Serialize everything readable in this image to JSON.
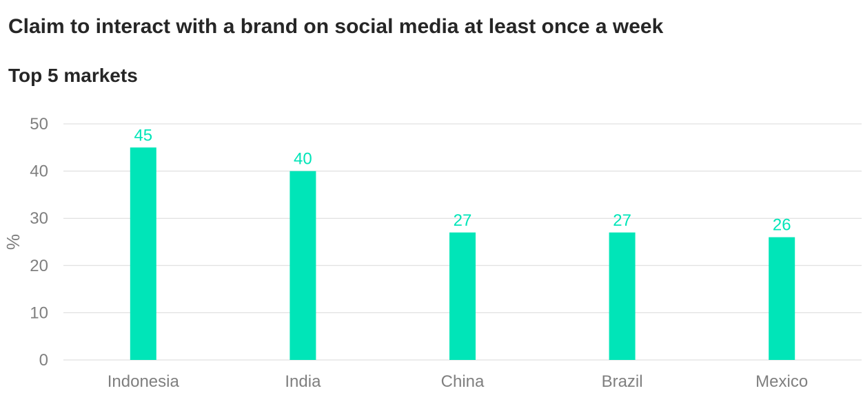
{
  "title": "Claim to interact with a brand on social media at least once a week",
  "subtitle": "Top 5 markets",
  "colors": {
    "bar": "#00e5b8",
    "value_label": "#00e5b8",
    "grid": "#d9d9d9",
    "axis_text": "#7f7f7f"
  },
  "chart_data": {
    "type": "bar",
    "categories": [
      "Indonesia",
      "India",
      "China",
      "Brazil",
      "Mexico"
    ],
    "values": [
      45,
      40,
      27,
      27,
      26
    ],
    "title": "Claim to interact with a brand on social media at least once a week",
    "subtitle": "Top 5 markets",
    "xlabel": "",
    "ylabel": "%",
    "ylim": [
      0,
      50
    ],
    "yticks": [
      0,
      10,
      20,
      30,
      40,
      50
    ],
    "grid": true,
    "data_labels": true,
    "legend": "none"
  }
}
